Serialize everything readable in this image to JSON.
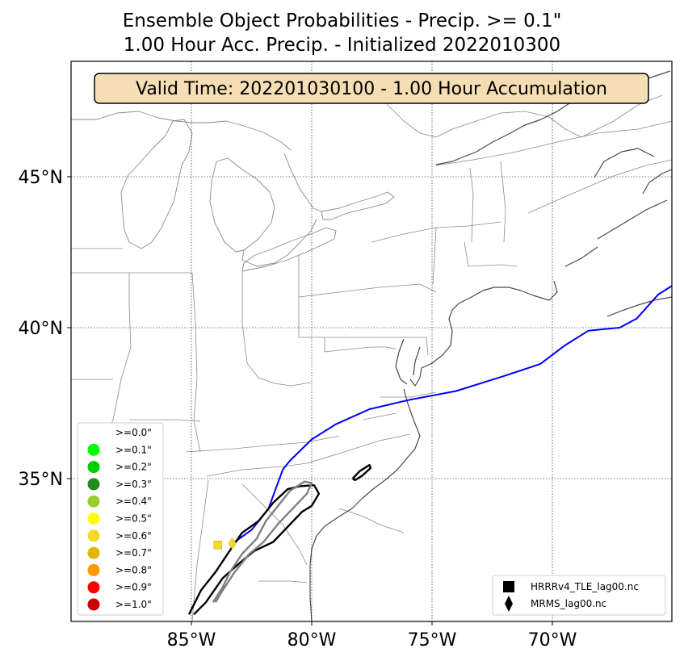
{
  "chart_data": {
    "type": "map",
    "title": "Ensemble Object Probabilities - Precip. >= 0.1\"",
    "subtitle": "1.00 Hour Acc. Precip. - Initialized 2022010300",
    "valid_time_label": "Valid Time: 202201030100 - 1.00 Hour Accumulation",
    "lon_range": [
      -90,
      -65
    ],
    "lat_range": [
      30.5,
      48.2
    ],
    "x_ticks": [
      {
        "value": -85,
        "label": "85°W"
      },
      {
        "value": -80,
        "label": "80°W"
      },
      {
        "value": -75,
        "label": "75°W"
      },
      {
        "value": -70,
        "label": "70°W"
      }
    ],
    "y_ticks": [
      {
        "value": 35,
        "label": "35°N"
      },
      {
        "value": 40,
        "label": "40°N"
      },
      {
        "value": 45,
        "label": "45°N"
      }
    ],
    "grid": true,
    "prob_legend": {
      "placement": "lower-left",
      "entries": [
        {
          "label": ">=0.0\"",
          "color": "#ffffff"
        },
        {
          "label": ">=0.1\"",
          "color": "#00ff00"
        },
        {
          "label": ">=0.2\"",
          "color": "#00cc00"
        },
        {
          "label": ">=0.3\"",
          "color": "#228b22"
        },
        {
          "label": ">=0.4\"",
          "color": "#9acd32"
        },
        {
          "label": ">=0.5\"",
          "color": "#ffff00"
        },
        {
          "label": ">=0.6\"",
          "color": "#f5d82a"
        },
        {
          "label": ">=0.7\"",
          "color": "#e0b800"
        },
        {
          "label": ">=0.8\"",
          "color": "#ff9900"
        },
        {
          "label": ">=0.9\"",
          "color": "#ff0000"
        },
        {
          "label": ">=1.0\"",
          "color": "#cc0000"
        }
      ]
    },
    "source_legend": {
      "placement": "lower-right",
      "entries": [
        {
          "label": "HRRRv4_TLE_lag00.nc",
          "marker": "square"
        },
        {
          "label": "MRMS_lag00.nc",
          "marker": "diamond"
        }
      ]
    },
    "series": [
      {
        "name": "front-line",
        "color": "#0000ff",
        "points": [
          [
            -83.2,
            32.9
          ],
          [
            -82.5,
            33.3
          ],
          [
            -81.8,
            34.0
          ],
          [
            -81.2,
            35.3
          ],
          [
            -80.9,
            35.6
          ],
          [
            -80.0,
            36.3
          ],
          [
            -79.0,
            36.8
          ],
          [
            -77.6,
            37.3
          ],
          [
            -76.0,
            37.6
          ],
          [
            -74.0,
            37.9
          ],
          [
            -72.0,
            38.4
          ],
          [
            -70.5,
            38.8
          ],
          [
            -69.5,
            39.4
          ],
          [
            -68.5,
            39.9
          ],
          [
            -67.2,
            40.0
          ],
          [
            -66.5,
            40.3
          ],
          [
            -65.6,
            41.1
          ],
          [
            -65.0,
            41.4
          ]
        ]
      },
      {
        "name": "hrrr-object-outer",
        "color": "#000000",
        "points": [
          [
            -85.1,
            30.5
          ],
          [
            -84.6,
            31.3
          ],
          [
            -84.0,
            31.9
          ],
          [
            -83.5,
            32.5
          ],
          [
            -82.9,
            33.2
          ],
          [
            -82.2,
            33.6
          ],
          [
            -81.6,
            34.2
          ],
          [
            -81.0,
            34.65
          ],
          [
            -80.5,
            34.75
          ],
          [
            -79.9,
            34.78
          ],
          [
            -79.7,
            34.5
          ],
          [
            -80.0,
            34.1
          ],
          [
            -80.4,
            33.9
          ],
          [
            -81.0,
            33.4
          ],
          [
            -81.6,
            32.9
          ],
          [
            -82.4,
            32.6
          ],
          [
            -83.0,
            32.2
          ],
          [
            -83.7,
            31.7
          ],
          [
            -84.4,
            30.9
          ],
          [
            -84.9,
            30.5
          ]
        ]
      },
      {
        "name": "mrms-object",
        "color": "#808080",
        "points": [
          [
            -84.1,
            30.9
          ],
          [
            -83.7,
            31.4
          ],
          [
            -83.4,
            31.9
          ],
          [
            -82.9,
            32.5
          ],
          [
            -82.3,
            33.0
          ],
          [
            -81.9,
            33.6
          ],
          [
            -81.4,
            34.1
          ],
          [
            -80.9,
            34.6
          ],
          [
            -80.3,
            34.9
          ],
          [
            -80.0,
            34.85
          ],
          [
            -80.2,
            34.5
          ],
          [
            -80.8,
            34.0
          ],
          [
            -81.4,
            33.5
          ],
          [
            -82.0,
            32.9
          ],
          [
            -82.6,
            32.5
          ],
          [
            -83.2,
            31.9
          ],
          [
            -83.7,
            31.3
          ],
          [
            -84.0,
            30.9
          ]
        ]
      },
      {
        "name": "small-object",
        "color": "#000000",
        "points": [
          [
            -78.3,
            35.0
          ],
          [
            -78.0,
            35.25
          ],
          [
            -77.6,
            35.45
          ],
          [
            -77.55,
            35.35
          ],
          [
            -77.9,
            35.1
          ],
          [
            -78.2,
            34.95
          ],
          [
            -78.3,
            35.0
          ]
        ]
      }
    ],
    "markers": [
      {
        "shape": "square",
        "lon": -83.9,
        "lat": 32.8,
        "color": "#f5d82a"
      },
      {
        "shape": "diamond",
        "lon": -83.3,
        "lat": 32.85,
        "color": "#f5d82a"
      }
    ]
  }
}
